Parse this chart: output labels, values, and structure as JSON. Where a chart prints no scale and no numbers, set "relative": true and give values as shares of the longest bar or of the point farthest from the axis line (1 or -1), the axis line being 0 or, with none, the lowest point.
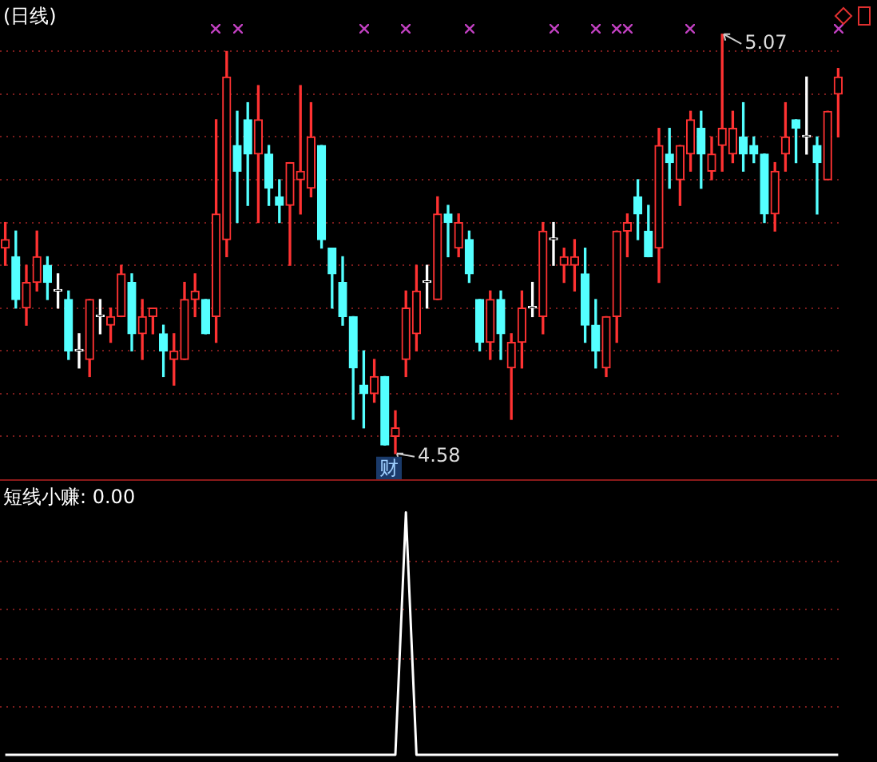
{
  "chart_data": [
    {
      "type": "candlestick",
      "title": "(日线)",
      "categories": [
        null,
        null,
        null,
        null,
        null,
        null,
        null,
        null,
        null,
        null,
        null,
        null,
        null,
        null,
        null,
        null,
        null,
        null,
        null,
        null,
        null,
        null,
        null,
        null,
        null,
        null,
        null,
        null,
        null,
        null,
        null,
        null,
        null,
        null,
        null,
        null,
        null,
        null,
        null,
        null,
        null,
        null,
        null,
        null,
        null,
        null,
        null,
        null,
        null,
        null,
        null,
        null,
        null,
        null,
        null,
        null,
        null,
        null,
        null,
        null,
        null,
        null,
        null,
        null,
        null,
        null,
        null,
        null,
        null,
        null,
        null,
        null,
        null,
        null,
        null,
        null,
        null,
        null,
        null,
        null
      ],
      "ohlc": [
        [
          4.82,
          4.85,
          4.8,
          4.83
        ],
        [
          4.81,
          4.84,
          4.75,
          4.76
        ],
        [
          4.75,
          4.8,
          4.73,
          4.78
        ],
        [
          4.78,
          4.84,
          4.77,
          4.81
        ],
        [
          4.8,
          4.81,
          4.76,
          4.78
        ],
        [
          4.77,
          4.79,
          4.75,
          4.77
        ],
        [
          4.76,
          4.77,
          4.69,
          4.7
        ],
        [
          4.7,
          4.72,
          4.68,
          4.7
        ],
        [
          4.69,
          4.76,
          4.67,
          4.76
        ],
        [
          4.74,
          4.76,
          4.72,
          4.74
        ],
        [
          4.73,
          4.75,
          4.71,
          4.74
        ],
        [
          4.74,
          4.8,
          4.74,
          4.79
        ],
        [
          4.78,
          4.79,
          4.7,
          4.72
        ],
        [
          4.72,
          4.76,
          4.69,
          4.74
        ],
        [
          4.74,
          4.75,
          4.72,
          4.75
        ],
        [
          4.72,
          4.73,
          4.67,
          4.7
        ],
        [
          4.69,
          4.72,
          4.66,
          4.7
        ],
        [
          4.69,
          4.78,
          4.69,
          4.76
        ],
        [
          4.76,
          4.79,
          4.74,
          4.77
        ],
        [
          4.76,
          4.76,
          4.72,
          4.72
        ],
        [
          4.74,
          4.97,
          4.71,
          4.86
        ],
        [
          4.83,
          5.05,
          4.81,
          5.02
        ],
        [
          4.94,
          4.98,
          4.85,
          4.91
        ],
        [
          4.97,
          4.99,
          4.87,
          4.93
        ],
        [
          4.93,
          5.01,
          4.85,
          4.97
        ],
        [
          4.93,
          4.94,
          4.87,
          4.89
        ],
        [
          4.88,
          4.9,
          4.85,
          4.87
        ],
        [
          4.87,
          4.92,
          4.8,
          4.92
        ],
        [
          4.9,
          5.01,
          4.86,
          4.91
        ],
        [
          4.89,
          4.99,
          4.88,
          4.95
        ],
        [
          4.94,
          4.94,
          4.82,
          4.83
        ],
        [
          4.82,
          4.82,
          4.75,
          4.79
        ],
        [
          4.78,
          4.81,
          4.73,
          4.74
        ],
        [
          4.74,
          4.74,
          4.62,
          4.68
        ],
        [
          4.66,
          4.7,
          4.61,
          4.65
        ],
        [
          4.65,
          4.69,
          4.64,
          4.67
        ],
        [
          4.67,
          4.67,
          4.59,
          4.59
        ],
        [
          4.6,
          4.63,
          4.58,
          4.61
        ],
        [
          4.69,
          4.77,
          4.67,
          4.75
        ],
        [
          4.72,
          4.8,
          4.7,
          4.77
        ],
        [
          4.78,
          4.8,
          4.75,
          4.78
        ],
        [
          4.76,
          4.88,
          4.76,
          4.86
        ],
        [
          4.86,
          4.87,
          4.81,
          4.85
        ],
        [
          4.82,
          4.86,
          4.81,
          4.85
        ],
        [
          4.83,
          4.84,
          4.78,
          4.79
        ],
        [
          4.76,
          4.76,
          4.7,
          4.71
        ],
        [
          4.71,
          4.77,
          4.69,
          4.76
        ],
        [
          4.76,
          4.77,
          4.69,
          4.72
        ],
        [
          4.68,
          4.72,
          4.62,
          4.71
        ],
        [
          4.71,
          4.77,
          4.68,
          4.75
        ],
        [
          4.75,
          4.78,
          4.74,
          4.75
        ],
        [
          4.74,
          4.85,
          4.72,
          4.84
        ],
        [
          4.83,
          4.85,
          4.8,
          4.83
        ],
        [
          4.8,
          4.82,
          4.78,
          4.81
        ],
        [
          4.8,
          4.83,
          4.77,
          4.81
        ],
        [
          4.79,
          4.82,
          4.71,
          4.73
        ],
        [
          4.73,
          4.76,
          4.68,
          4.7
        ],
        [
          4.68,
          4.74,
          4.67,
          4.74
        ],
        [
          4.74,
          4.84,
          4.71,
          4.84
        ],
        [
          4.84,
          4.86,
          4.81,
          4.85
        ],
        [
          4.88,
          4.9,
          4.83,
          4.86
        ],
        [
          4.84,
          4.87,
          4.81,
          4.81
        ],
        [
          4.82,
          4.96,
          4.78,
          4.94
        ],
        [
          4.93,
          4.96,
          4.89,
          4.92
        ],
        [
          4.9,
          4.94,
          4.87,
          4.94
        ],
        [
          4.93,
          4.98,
          4.91,
          4.97
        ],
        [
          4.96,
          4.98,
          4.89,
          4.93
        ],
        [
          4.91,
          4.95,
          4.9,
          4.93
        ],
        [
          4.94,
          5.07,
          4.91,
          4.96
        ],
        [
          4.93,
          4.98,
          4.92,
          4.96
        ],
        [
          4.95,
          4.99,
          4.91,
          4.93
        ],
        [
          4.94,
          4.95,
          4.92,
          4.93
        ],
        [
          4.93,
          4.93,
          4.85,
          4.86
        ],
        [
          4.86,
          4.92,
          4.84,
          4.91
        ],
        [
          4.93,
          4.99,
          4.91,
          4.95
        ],
        [
          4.97,
          4.97,
          4.92,
          4.96
        ],
        [
          4.95,
          5.02,
          4.93,
          4.95
        ],
        [
          4.94,
          4.95,
          4.86,
          4.92
        ],
        [
          4.9,
          4.98,
          4.9,
          4.98
        ],
        [
          5.0,
          5.03,
          4.95,
          5.02
        ]
      ],
      "colors": [
        "#ff3232",
        "#54ffff",
        "#ff3232",
        "#ff3232",
        "#54ffff",
        "#ffffff",
        "#54ffff",
        "#ffffff",
        "#ff3232",
        "#ffffff",
        "#ff3232",
        "#ff3232",
        "#54ffff",
        "#ff3232",
        "#ff3232",
        "#54ffff",
        "#ff3232",
        "#ff3232",
        "#ff3232",
        "#54ffff",
        "#ff3232",
        "#ff3232",
        "#54ffff",
        "#54ffff",
        "#ff3232",
        "#54ffff",
        "#54ffff",
        "#ff3232",
        "#ff3232",
        "#ff3232",
        "#54ffff",
        "#54ffff",
        "#54ffff",
        "#54ffff",
        "#54ffff",
        "#ff3232",
        "#54ffff",
        "#ff3232",
        "#ff3232",
        "#ff3232",
        "#ffffff",
        "#ff3232",
        "#54ffff",
        "#ff3232",
        "#54ffff",
        "#54ffff",
        "#ff3232",
        "#54ffff",
        "#ff3232",
        "#ff3232",
        "#ffffff",
        "#ff3232",
        "#ffffff",
        "#ff3232",
        "#ff3232",
        "#54ffff",
        "#54ffff",
        "#ff3232",
        "#ff3232",
        "#ff3232",
        "#54ffff",
        "#54ffff",
        "#ff3232",
        "#54ffff",
        "#ff3232",
        "#ff3232",
        "#54ffff",
        "#ff3232",
        "#ff3232",
        "#ff3232",
        "#54ffff",
        "#54ffff",
        "#54ffff",
        "#ff3232",
        "#ff3232",
        "#54ffff",
        "#ffffff",
        "#54ffff",
        "#ff3232",
        "#ff3232"
      ],
      "ylim": [
        4.55,
        5.11
      ],
      "yticks": [
        {
          "value": 4.6,
          "label": null
        },
        {
          "value": 4.65,
          "label": null
        },
        {
          "value": 4.7,
          "label": null
        },
        {
          "value": 4.75,
          "label": null
        },
        {
          "value": 4.8,
          "label": null
        },
        {
          "value": 4.85,
          "label": null
        },
        {
          "value": 4.9,
          "label": null
        },
        {
          "value": 4.95,
          "label": null
        },
        {
          "value": 5.0,
          "label": null
        },
        {
          "value": 5.05,
          "label": null
        }
      ],
      "grid": "y",
      "annotations": [
        "5.07",
        "4.58",
        "财"
      ]
    },
    {
      "type": "line",
      "title": "短线小赚: 0.00",
      "relative": true,
      "ref_lines": [
        {
          "axis": "y",
          "value": 0.2,
          "color": "#7a1c1c",
          "line_style": "dotted"
        },
        {
          "axis": "y",
          "value": 0.4,
          "color": "#7a1c1c",
          "line_style": "dotted"
        },
        {
          "axis": "y",
          "value": 0.6,
          "color": "#7a1c1c",
          "line_style": "dotted"
        },
        {
          "axis": "y",
          "value": 0.8,
          "color": "#7a1c1c",
          "line_style": "dotted"
        }
      ],
      "categories": [
        null,
        null,
        null,
        null,
        null,
        null,
        null,
        null,
        null,
        null,
        null,
        null,
        null,
        null,
        null,
        null,
        null,
        null,
        null,
        null,
        null,
        null,
        null,
        null,
        null,
        null,
        null,
        null,
        null,
        null,
        null,
        null,
        null,
        null,
        null,
        null,
        null,
        null,
        null,
        null,
        null,
        null,
        null,
        null,
        null,
        null,
        null,
        null,
        null,
        null,
        null,
        null,
        null,
        null,
        null,
        null,
        null,
        null,
        null,
        null,
        null,
        null,
        null,
        null,
        null,
        null,
        null,
        null,
        null,
        null,
        null,
        null,
        null,
        null,
        null,
        null,
        null,
        null,
        null,
        null
      ],
      "series": [
        {
          "color": "#ffffff",
          "values": [
            0,
            0,
            0,
            0,
            0,
            0,
            0,
            0,
            0,
            0,
            0,
            0,
            0,
            0,
            0,
            0,
            0,
            0,
            0,
            0,
            0,
            0,
            0,
            0,
            0,
            0,
            0,
            0,
            0,
            0,
            0,
            0,
            0,
            0,
            0,
            0,
            0,
            0,
            1,
            0,
            0,
            0,
            0,
            0,
            0,
            0,
            0,
            0,
            0,
            0,
            0,
            0,
            0,
            0,
            0,
            0,
            0,
            0,
            0,
            0,
            0,
            0,
            0,
            0,
            0,
            0,
            0,
            0,
            0,
            0,
            0,
            0,
            0,
            0,
            0,
            0,
            0,
            0,
            0,
            0
          ]
        }
      ]
    }
  ]
}
